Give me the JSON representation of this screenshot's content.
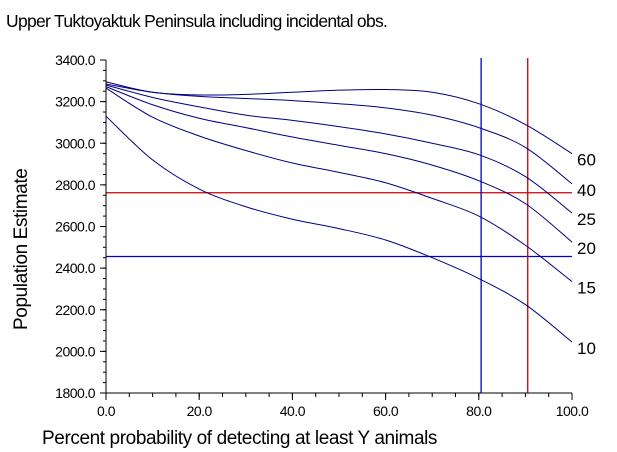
{
  "chart_data": {
    "type": "line",
    "title": "Upper Tuktoyaktuk Peninsula including incidental obs.",
    "xlabel": "Percent probability of detecting at least Y animals",
    "ylabel": "Population Estimate",
    "xlim": [
      0,
      100
    ],
    "ylim": [
      1800,
      3400
    ],
    "x_ticks": [
      "0.0",
      "20.0",
      "40.0",
      "60.0",
      "80.0",
      "100.0"
    ],
    "y_ticks": [
      "1800.0",
      "2000.0",
      "2200.0",
      "2400.0",
      "2600.0",
      "2800.0",
      "3000.0",
      "3200.0",
      "3400.0"
    ],
    "grid": false,
    "series": [
      {
        "name": "60",
        "x": [
          0,
          10,
          20,
          30,
          40,
          50,
          60,
          70,
          80,
          90,
          100
        ],
        "y": [
          3295,
          3245,
          3232,
          3235,
          3245,
          3255,
          3258,
          3245,
          3190,
          3090,
          2950
        ]
      },
      {
        "name": "40",
        "x": [
          0,
          10,
          20,
          30,
          40,
          50,
          60,
          70,
          80,
          90,
          100
        ],
        "y": [
          3285,
          3245,
          3225,
          3215,
          3205,
          3190,
          3170,
          3135,
          3075,
          2980,
          2805
        ]
      },
      {
        "name": "25",
        "x": [
          0,
          10,
          20,
          30,
          40,
          50,
          60,
          70,
          80,
          90,
          100
        ],
        "y": [
          3280,
          3220,
          3175,
          3135,
          3110,
          3080,
          3045,
          3000,
          2945,
          2840,
          2665
        ]
      },
      {
        "name": "20",
        "x": [
          0,
          10,
          20,
          30,
          40,
          50,
          60,
          70,
          80,
          90,
          100
        ],
        "y": [
          3272,
          3185,
          3120,
          3075,
          3030,
          2990,
          2950,
          2895,
          2820,
          2710,
          2525
        ]
      },
      {
        "name": "15",
        "x": [
          0,
          10,
          20,
          30,
          40,
          50,
          60,
          70,
          80,
          90,
          100
        ],
        "y": [
          3265,
          3125,
          3035,
          2965,
          2905,
          2860,
          2810,
          2735,
          2650,
          2510,
          2335
        ]
      },
      {
        "name": "10",
        "x": [
          0,
          10,
          20,
          30,
          40,
          50,
          60,
          70,
          80,
          90,
          100
        ],
        "y": [
          3130,
          2920,
          2780,
          2695,
          2635,
          2590,
          2535,
          2450,
          2350,
          2225,
          2045
        ]
      }
    ],
    "reference_lines": [
      {
        "orientation": "horizontal",
        "value": 2762,
        "color": "#cc0000"
      },
      {
        "orientation": "horizontal",
        "value": 2456,
        "color": "#0000cc"
      },
      {
        "orientation": "vertical",
        "value": 80.5,
        "color": "#0000cc"
      },
      {
        "orientation": "vertical",
        "value": 90.5,
        "color": "#cc0000"
      }
    ],
    "curve_color": "#000080"
  }
}
